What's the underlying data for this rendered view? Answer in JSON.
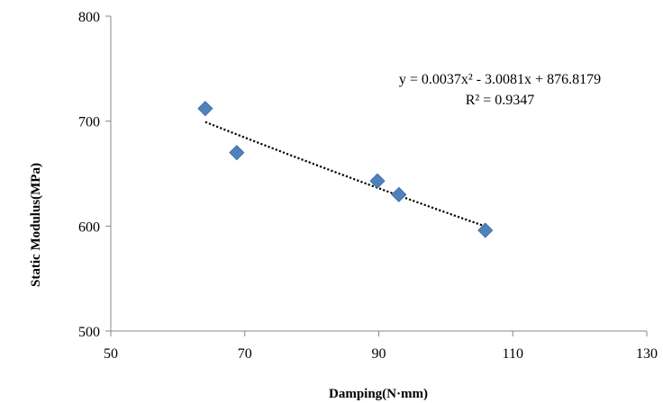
{
  "chart_data": {
    "type": "scatter",
    "xlabel": "Damping(N·mm)",
    "ylabel": "Static Modulus(MPa)",
    "xlim": [
      50,
      130
    ],
    "ylim": [
      500,
      800
    ],
    "xticks": [
      50,
      70,
      90,
      110,
      130
    ],
    "yticks": [
      500,
      600,
      700,
      800
    ],
    "grid": false,
    "series": [
      {
        "marker": "diamond",
        "color": "#4f81bd",
        "points": [
          {
            "x": 64.1,
            "y": 712
          },
          {
            "x": 68.8,
            "y": 670
          },
          {
            "x": 89.8,
            "y": 643
          },
          {
            "x": 93.0,
            "y": 630
          },
          {
            "x": 105.9,
            "y": 596
          }
        ]
      }
    ],
    "trendline": {
      "type": "polynomial",
      "order": 2,
      "style": "dotted",
      "color": "#000000",
      "coefficients": [
        0.0037,
        -3.0081,
        876.8179
      ],
      "x_range": [
        64.1,
        105.9
      ],
      "equation_text": "y = 0.0037x² - 3.0081x + 876.8179",
      "r2_text": "R² = 0.9347"
    }
  }
}
